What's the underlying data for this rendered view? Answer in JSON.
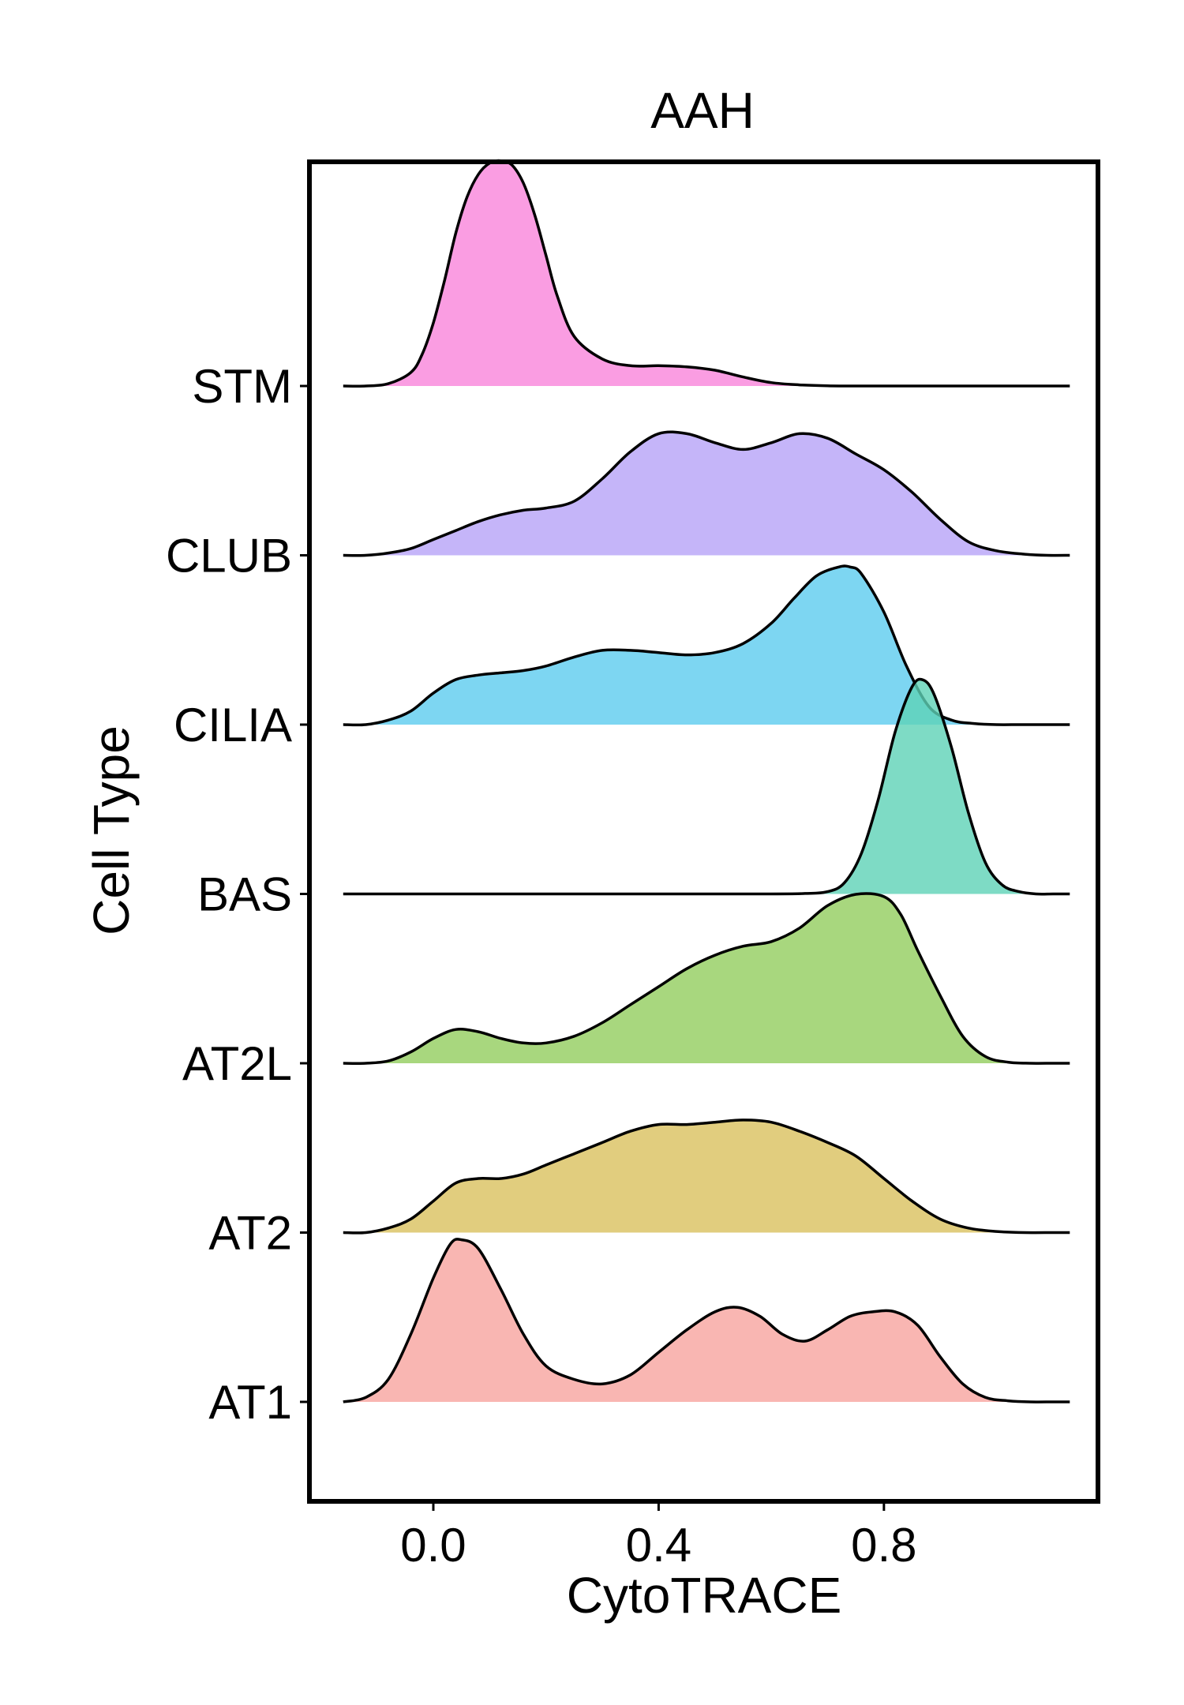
{
  "chart_data": {
    "type": "ridgeline",
    "title": "AAH",
    "xlabel": "CytoTRACE",
    "ylabel": "Cell Type",
    "xlim": [
      -0.22,
      1.18
    ],
    "xticks": [
      {
        "value": 0.0,
        "label": "0.0"
      },
      {
        "value": 0.4,
        "label": "0.4"
      },
      {
        "value": 0.8,
        "label": "0.8"
      }
    ],
    "categories": [
      "AT1",
      "AT2",
      "AT2L",
      "BAS",
      "CILIA",
      "CLUB",
      "STM"
    ],
    "density_scale": 1.33,
    "series": [
      {
        "name": "AT1",
        "color": "#F8A49F",
        "x": [
          -0.16,
          -0.12,
          -0.08,
          -0.04,
          0.0,
          0.03,
          0.05,
          0.08,
          0.12,
          0.16,
          0.2,
          0.25,
          0.3,
          0.35,
          0.4,
          0.45,
          0.5,
          0.54,
          0.58,
          0.62,
          0.66,
          0.7,
          0.74,
          0.78,
          0.82,
          0.86,
          0.9,
          0.94,
          0.98,
          1.02,
          1.06,
          1.1,
          1.13
        ],
        "y": [
          0.0,
          0.02,
          0.1,
          0.3,
          0.55,
          0.7,
          0.72,
          0.68,
          0.5,
          0.3,
          0.16,
          0.1,
          0.08,
          0.12,
          0.22,
          0.32,
          0.4,
          0.42,
          0.38,
          0.3,
          0.27,
          0.32,
          0.38,
          0.4,
          0.4,
          0.34,
          0.2,
          0.08,
          0.02,
          0.005,
          0.0,
          0.0,
          0.0
        ]
      },
      {
        "name": "AT2",
        "color": "#D9C05E",
        "x": [
          -0.16,
          -0.12,
          -0.08,
          -0.04,
          0.0,
          0.04,
          0.08,
          0.12,
          0.16,
          0.2,
          0.25,
          0.3,
          0.35,
          0.4,
          0.45,
          0.5,
          0.55,
          0.6,
          0.65,
          0.7,
          0.75,
          0.8,
          0.85,
          0.9,
          0.95,
          1.0,
          1.05,
          1.1,
          1.13
        ],
        "y": [
          0.0,
          0.0,
          0.02,
          0.06,
          0.14,
          0.22,
          0.24,
          0.24,
          0.26,
          0.3,
          0.35,
          0.4,
          0.45,
          0.48,
          0.48,
          0.49,
          0.5,
          0.49,
          0.45,
          0.4,
          0.34,
          0.24,
          0.14,
          0.06,
          0.02,
          0.005,
          0.0,
          0.0,
          0.0
        ]
      },
      {
        "name": "AT2L",
        "color": "#92CD5E",
        "x": [
          -0.16,
          -0.12,
          -0.08,
          -0.04,
          0.0,
          0.04,
          0.08,
          0.12,
          0.16,
          0.2,
          0.25,
          0.3,
          0.35,
          0.4,
          0.45,
          0.5,
          0.55,
          0.6,
          0.65,
          0.7,
          0.75,
          0.8,
          0.83,
          0.86,
          0.9,
          0.94,
          0.98,
          1.02,
          1.06,
          1.1,
          1.13
        ],
        "y": [
          0.0,
          0.0,
          0.01,
          0.05,
          0.11,
          0.15,
          0.14,
          0.11,
          0.09,
          0.09,
          0.12,
          0.18,
          0.26,
          0.34,
          0.42,
          0.48,
          0.52,
          0.54,
          0.6,
          0.7,
          0.75,
          0.74,
          0.66,
          0.5,
          0.3,
          0.12,
          0.03,
          0.005,
          0.0,
          0.0,
          0.0
        ]
      },
      {
        "name": "BAS",
        "color": "#5ED2B6",
        "x": [
          -0.16,
          0.0,
          0.3,
          0.6,
          0.66,
          0.7,
          0.73,
          0.76,
          0.79,
          0.82,
          0.85,
          0.87,
          0.89,
          0.92,
          0.95,
          0.98,
          1.01,
          1.04,
          1.07,
          1.1,
          1.13
        ],
        "y": [
          0.0,
          0.0,
          0.0,
          0.0,
          0.002,
          0.01,
          0.05,
          0.18,
          0.42,
          0.72,
          0.92,
          0.95,
          0.88,
          0.65,
          0.36,
          0.14,
          0.04,
          0.01,
          0.0,
          0.0,
          0.0
        ]
      },
      {
        "name": "CILIA",
        "color": "#5DCCEF",
        "x": [
          -0.16,
          -0.12,
          -0.08,
          -0.04,
          0.0,
          0.04,
          0.08,
          0.12,
          0.16,
          0.2,
          0.25,
          0.3,
          0.35,
          0.4,
          0.45,
          0.5,
          0.55,
          0.6,
          0.64,
          0.68,
          0.72,
          0.74,
          0.76,
          0.8,
          0.84,
          0.88,
          0.92,
          0.96,
          1.0,
          1.04,
          1.08,
          1.13
        ],
        "y": [
          0.0,
          0.0,
          0.02,
          0.06,
          0.14,
          0.2,
          0.22,
          0.23,
          0.24,
          0.26,
          0.3,
          0.33,
          0.33,
          0.32,
          0.31,
          0.32,
          0.36,
          0.45,
          0.56,
          0.66,
          0.7,
          0.7,
          0.67,
          0.5,
          0.26,
          0.08,
          0.02,
          0.005,
          0.0,
          0.0,
          0.0,
          0.0
        ]
      },
      {
        "name": "CLUB",
        "color": "#B6A3F8",
        "x": [
          -0.16,
          -0.12,
          -0.08,
          -0.04,
          0.0,
          0.04,
          0.08,
          0.12,
          0.16,
          0.2,
          0.25,
          0.3,
          0.35,
          0.4,
          0.45,
          0.5,
          0.55,
          0.6,
          0.65,
          0.7,
          0.75,
          0.8,
          0.85,
          0.9,
          0.95,
          1.0,
          1.05,
          1.09,
          1.13
        ],
        "y": [
          0.0,
          0.0,
          0.01,
          0.03,
          0.07,
          0.11,
          0.15,
          0.18,
          0.2,
          0.21,
          0.24,
          0.34,
          0.46,
          0.54,
          0.54,
          0.5,
          0.47,
          0.5,
          0.54,
          0.52,
          0.45,
          0.38,
          0.28,
          0.16,
          0.06,
          0.02,
          0.005,
          0.0,
          0.0
        ]
      },
      {
        "name": "STM",
        "color": "#F985DB",
        "x": [
          -0.16,
          -0.12,
          -0.08,
          -0.04,
          -0.02,
          0.0,
          0.02,
          0.04,
          0.06,
          0.08,
          0.1,
          0.12,
          0.14,
          0.16,
          0.18,
          0.2,
          0.22,
          0.25,
          0.3,
          0.35,
          0.4,
          0.45,
          0.5,
          0.55,
          0.6,
          0.65,
          0.7,
          0.75,
          0.8,
          0.9,
          1.0,
          1.13
        ],
        "y": [
          0.0,
          0.0,
          0.01,
          0.06,
          0.14,
          0.28,
          0.47,
          0.68,
          0.84,
          0.94,
          0.99,
          1.0,
          0.98,
          0.9,
          0.76,
          0.58,
          0.4,
          0.22,
          0.12,
          0.09,
          0.09,
          0.085,
          0.07,
          0.04,
          0.015,
          0.005,
          0.001,
          0.0,
          0.0,
          0.0,
          0.0,
          0.0
        ]
      }
    ]
  }
}
